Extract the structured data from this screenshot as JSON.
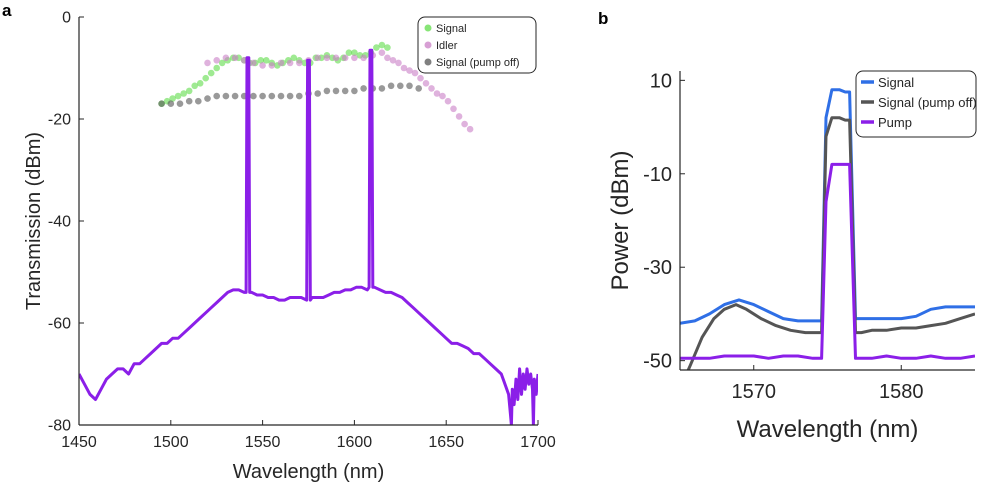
{
  "panels": {
    "a": {
      "letter": "a"
    },
    "b": {
      "letter": "b"
    }
  },
  "chart_data": [
    {
      "panel": "a",
      "type": "scatter",
      "title": "",
      "xlabel": "Wavelength (nm)",
      "ylabel": "Transmission (dBm)",
      "xlim": [
        1450,
        1700
      ],
      "ylim": [
        -80,
        0
      ],
      "xticks": [
        "1450",
        "1500",
        "1550",
        "1600",
        "1650",
        "1700"
      ],
      "yticks": [
        "0",
        "-20",
        "-40",
        "-60",
        "-80"
      ],
      "legend": {
        "placement": "top-right",
        "entries": [
          "Signal",
          "Idler",
          "Signal (pump off)"
        ]
      },
      "grid": false,
      "series": [
        {
          "name": "Signal",
          "kind": "scatter",
          "color": "#5fdc4a",
          "x": [
            1495,
            1498,
            1501,
            1504,
            1507,
            1510,
            1513,
            1516,
            1519,
            1522,
            1525,
            1528,
            1531,
            1534,
            1537,
            1540,
            1543,
            1546,
            1549,
            1552,
            1555,
            1558,
            1561,
            1564,
            1567,
            1570,
            1573,
            1576,
            1579,
            1582,
            1585,
            1588,
            1591,
            1594,
            1597,
            1600,
            1603,
            1606,
            1609,
            1612,
            1615,
            1618
          ],
          "y": [
            -17,
            -16.5,
            -16,
            -15.5,
            -15,
            -14.5,
            -13.5,
            -13,
            -12,
            -11,
            -10,
            -9,
            -8.5,
            -8,
            -8,
            -8.5,
            -9,
            -9,
            -8.5,
            -8.5,
            -9,
            -9.5,
            -9,
            -8.5,
            -8,
            -8.5,
            -9,
            -9,
            -8,
            -8,
            -7.5,
            -8,
            -8.5,
            -8,
            -7,
            -7,
            -7.5,
            -7.5,
            -7,
            -6,
            -5.5,
            -6
          ]
        },
        {
          "name": "Idler",
          "kind": "scatter",
          "color": "#c97fc6",
          "x": [
            1520,
            1525,
            1530,
            1535,
            1540,
            1545,
            1550,
            1555,
            1560,
            1565,
            1570,
            1575,
            1580,
            1585,
            1590,
            1595,
            1600,
            1605,
            1610,
            1615,
            1618,
            1621,
            1624,
            1627,
            1630,
            1633,
            1636,
            1639,
            1642,
            1645,
            1648,
            1651,
            1654,
            1657,
            1660,
            1663
          ],
          "y": [
            -9,
            -8.5,
            -8,
            -8,
            -8.5,
            -9,
            -9.5,
            -9.5,
            -9,
            -9,
            -9,
            -8.5,
            -8,
            -8,
            -8,
            -8,
            -8,
            -8,
            -7.5,
            -7,
            -8,
            -8.5,
            -9,
            -10,
            -10.5,
            -11,
            -12,
            -13,
            -14,
            -15,
            -15.5,
            -16.5,
            -18,
            -19.5,
            -21,
            -22
          ]
        },
        {
          "name": "Signal (pump off)",
          "kind": "scatter",
          "color": "#555555",
          "x": [
            1495,
            1500,
            1505,
            1510,
            1515,
            1520,
            1525,
            1530,
            1535,
            1540,
            1545,
            1550,
            1555,
            1560,
            1565,
            1570,
            1575,
            1580,
            1585,
            1590,
            1595,
            1600,
            1605,
            1610,
            1615,
            1620,
            1625,
            1630,
            1635
          ],
          "y": [
            -17,
            -17,
            -17,
            -16.5,
            -16.5,
            -16,
            -15.5,
            -15.5,
            -15.5,
            -15.5,
            -15.5,
            -15.5,
            -15.5,
            -15.5,
            -15.5,
            -15.5,
            -15,
            -15,
            -14.5,
            -14.5,
            -14.5,
            -14.5,
            -14,
            -14,
            -14,
            -13.5,
            -13.5,
            -13.5,
            -14
          ]
        },
        {
          "name": "",
          "kind": "line",
          "color": "#8b1fe8",
          "x": [
            1450,
            1453,
            1456,
            1459,
            1462,
            1465,
            1468,
            1471,
            1474,
            1477,
            1480,
            1483,
            1486,
            1489,
            1492,
            1495,
            1498,
            1501,
            1504,
            1507,
            1510,
            1513,
            1516,
            1519,
            1522,
            1525,
            1528,
            1531,
            1534,
            1537,
            1540,
            1541,
            1541.5,
            1542.5,
            1543,
            1544,
            1547,
            1550,
            1553,
            1556,
            1559,
            1562,
            1565,
            1568,
            1571,
            1574,
            1574.5,
            1575.5,
            1576,
            1577,
            1580,
            1583,
            1586,
            1589,
            1592,
            1595,
            1598,
            1601,
            1604,
            1607,
            1608,
            1608.5,
            1609.5,
            1610,
            1611,
            1614,
            1617,
            1620,
            1623,
            1626,
            1629,
            1632,
            1635,
            1638,
            1641,
            1644,
            1647,
            1650,
            1653,
            1656,
            1659,
            1662,
            1665,
            1668,
            1671,
            1674,
            1677,
            1680,
            1682,
            1684,
            1685,
            1685.5,
            1686,
            1687,
            1688,
            1689,
            1690,
            1691,
            1692,
            1693,
            1694,
            1695,
            1696,
            1697,
            1697.5,
            1698,
            1699,
            1700
          ],
          "y": [
            -70,
            -72,
            -74,
            -75,
            -73,
            -71,
            -70,
            -69,
            -69,
            -70,
            -68,
            -68,
            -67,
            -66,
            -65,
            -64,
            -64,
            -63,
            -63,
            -62,
            -61,
            -60,
            -59,
            -58,
            -57,
            -56,
            -55,
            -54,
            -53.5,
            -53.5,
            -54,
            -54,
            -8,
            -8,
            -54,
            -54,
            -54.5,
            -54.5,
            -55,
            -55,
            -55.5,
            -55.5,
            -55,
            -55,
            -55,
            -55.5,
            -8.5,
            -8.5,
            -55.5,
            -55,
            -55,
            -55,
            -54.5,
            -54,
            -54,
            -53.5,
            -53.5,
            -53,
            -53,
            -53.5,
            -53,
            -6.5,
            -6.5,
            -53,
            -53,
            -53.5,
            -54,
            -54,
            -54.5,
            -55,
            -56,
            -57,
            -58,
            -59,
            -60,
            -61,
            -62,
            -63,
            -64,
            -64,
            -64.5,
            -65,
            -66,
            -66,
            -67,
            -68,
            -69,
            -70,
            -72,
            -74,
            -78,
            -80,
            -73,
            -76,
            -71,
            -75,
            -69,
            -74,
            -70,
            -73,
            -69,
            -72,
            -70,
            -73,
            -80,
            -71,
            -74,
            -70
          ]
        }
      ]
    },
    {
      "panel": "b",
      "type": "line",
      "title": "",
      "xlabel": "Wavelength (nm)",
      "ylabel": "Power (dBm)",
      "xlim": [
        1565,
        1585
      ],
      "ylim": [
        -52,
        12
      ],
      "xticks": [
        "1570",
        "1580"
      ],
      "yticks": [
        "10",
        "-10",
        "-30",
        "-50"
      ],
      "legend": {
        "placement": "top-right",
        "entries": [
          "Signal",
          "Signal (pump off)",
          "Pump"
        ]
      },
      "grid": false,
      "series": [
        {
          "name": "Signal",
          "color": "#2f6fe6",
          "x": [
            1565,
            1566,
            1567,
            1568,
            1569,
            1570,
            1571,
            1572,
            1573,
            1574,
            1574.6,
            1574.9,
            1575.3,
            1575.8,
            1576.2,
            1576.5,
            1576.9,
            1577.3,
            1578,
            1579,
            1580,
            1581,
            1582,
            1583,
            1584,
            1585
          ],
          "y": [
            -42,
            -41.5,
            -40,
            -38,
            -37,
            -38,
            -39.5,
            -41,
            -41.5,
            -41.5,
            -41.5,
            2,
            8,
            8,
            7.5,
            7.5,
            -41,
            -41,
            -41,
            -41,
            -41,
            -40.5,
            -39,
            -38.5,
            -38.5,
            -38.5
          ]
        },
        {
          "name": "Signal (pump off)",
          "color": "#555555",
          "x": [
            1565,
            1565.7,
            1566.5,
            1567.3,
            1568,
            1568.8,
            1569.5,
            1570.5,
            1571.5,
            1572.5,
            1573.5,
            1574.6,
            1574.9,
            1575.3,
            1575.8,
            1576.2,
            1576.5,
            1576.9,
            1577.3,
            1578,
            1579,
            1580,
            1581,
            1582,
            1583,
            1584,
            1585
          ],
          "y": [
            -56,
            -51,
            -45,
            -41,
            -39,
            -38,
            -39,
            -41,
            -42.5,
            -43.5,
            -44,
            -44,
            -2,
            2,
            2,
            1.5,
            1.5,
            -44,
            -44,
            -43.5,
            -43.5,
            -43,
            -43,
            -42.5,
            -42,
            -41,
            -40
          ]
        },
        {
          "name": "Pump",
          "color": "#8b1fe8",
          "x": [
            1565,
            1566,
            1567,
            1568,
            1569,
            1570,
            1571,
            1572,
            1573,
            1574,
            1574.6,
            1574.9,
            1575.3,
            1575.8,
            1576.2,
            1576.5,
            1576.9,
            1577.3,
            1578,
            1579,
            1580,
            1581,
            1582,
            1583,
            1584,
            1585
          ],
          "y": [
            -49.5,
            -49.5,
            -49.5,
            -49,
            -49,
            -49,
            -49.5,
            -49,
            -49,
            -49.5,
            -49.5,
            -16,
            -8,
            -8,
            -8,
            -8,
            -49.5,
            -49.5,
            -49.5,
            -49,
            -49.5,
            -49.5,
            -49,
            -49.5,
            -49.5,
            -49
          ]
        }
      ]
    }
  ]
}
